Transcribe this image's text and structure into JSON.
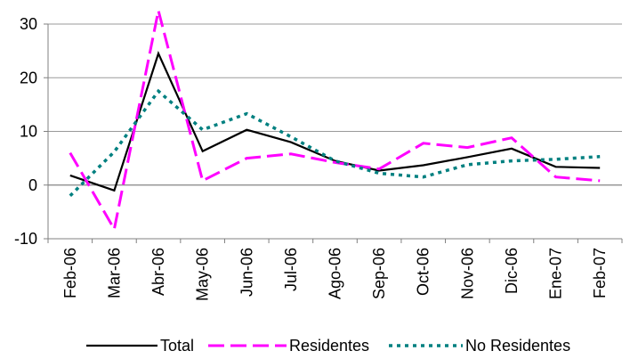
{
  "chart_data": {
    "type": "line",
    "title": "",
    "xlabel": "",
    "ylabel": "",
    "categories": [
      "Feb-06",
      "Mar-06",
      "Abr-06",
      "May-06",
      "Jun-06",
      "Jul-06",
      "Ago-06",
      "Sep-06",
      "Oct-06",
      "Nov-06",
      "Dic-06",
      "Ene-07",
      "Feb-07"
    ],
    "ylim": [
      -10,
      30
    ],
    "yticks": [
      -10,
      0,
      10,
      20,
      30
    ],
    "grid": true,
    "legend_position": "bottom",
    "series": [
      {
        "name": "Total",
        "color": "#000000",
        "style": "solid",
        "values": [
          1.8,
          -1.0,
          24.5,
          6.3,
          10.3,
          8.0,
          4.5,
          2.7,
          3.7,
          5.2,
          6.8,
          3.4,
          3.2
        ]
      },
      {
        "name": "Residentes",
        "color": "#ff00ff",
        "style": "dashed",
        "values": [
          6.0,
          -8.2,
          32.5,
          0.8,
          5.0,
          5.8,
          4.2,
          3.0,
          7.8,
          7.0,
          8.8,
          1.5,
          0.8
        ]
      },
      {
        "name": "No Residentes",
        "color": "#008080",
        "style": "dotted",
        "values": [
          -2.0,
          6.2,
          17.5,
          10.3,
          13.3,
          9.0,
          4.5,
          2.2,
          1.5,
          3.8,
          4.5,
          4.8,
          5.3
        ]
      }
    ]
  }
}
